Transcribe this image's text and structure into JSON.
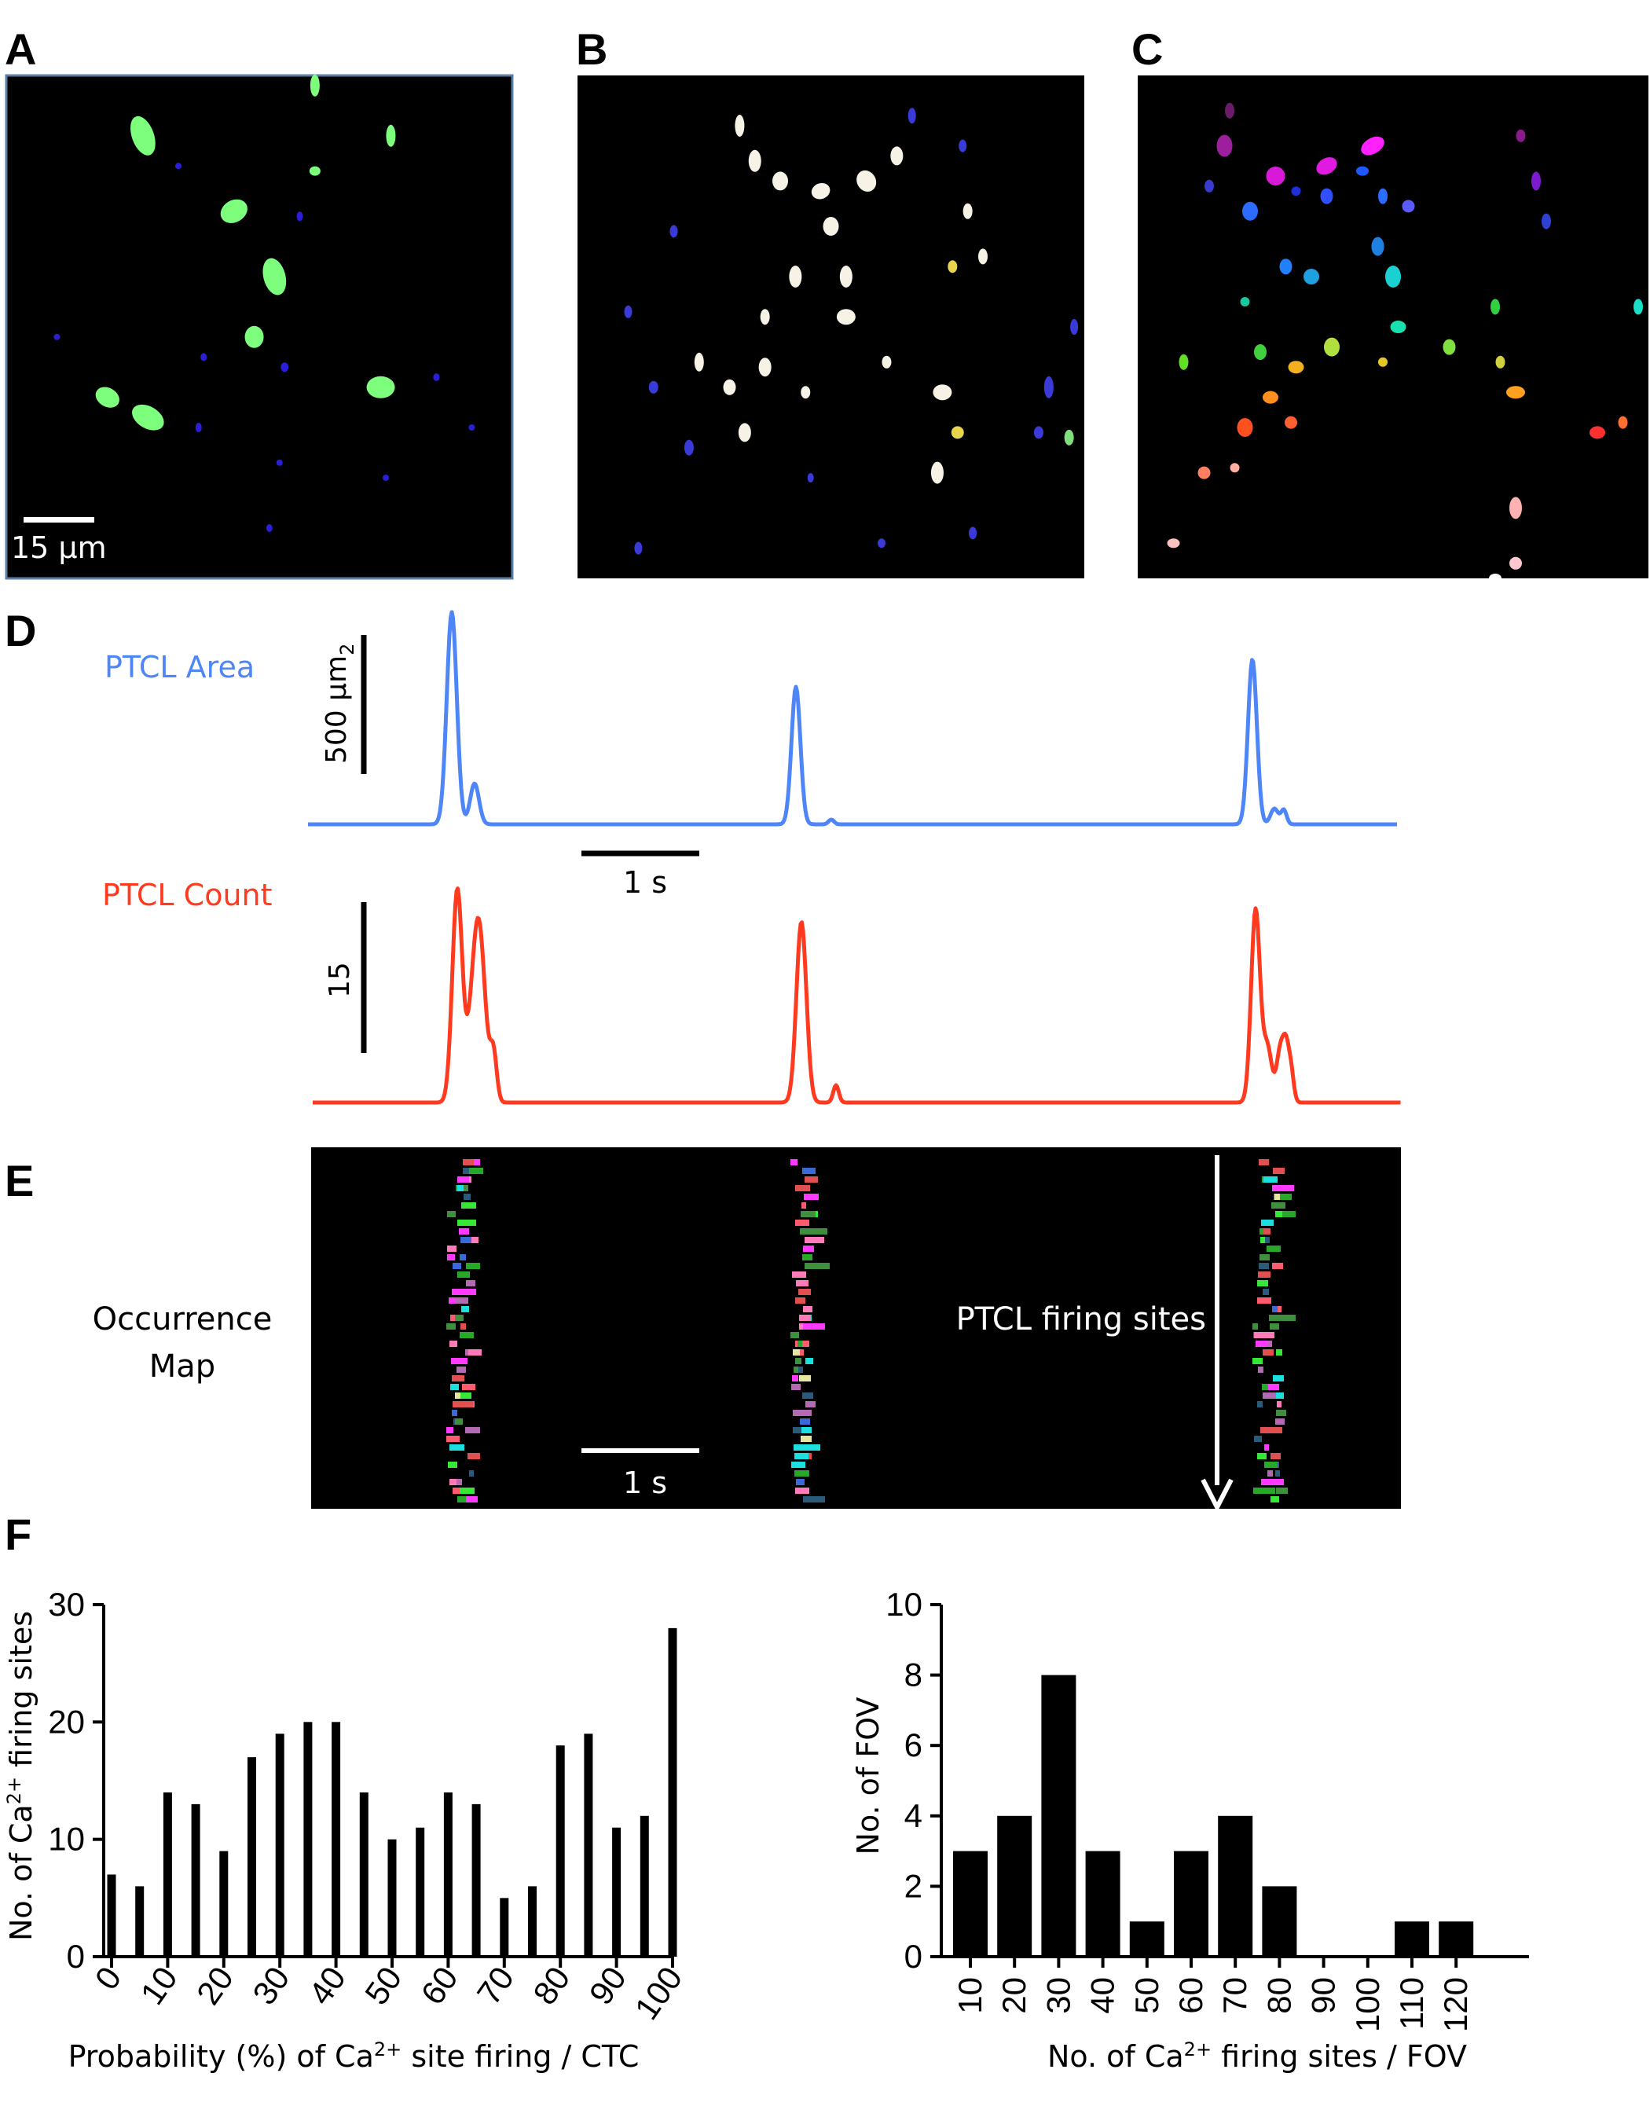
{
  "panels": {
    "A": {
      "label": "A",
      "scalebar": "15 μm"
    },
    "B": {
      "label": "B"
    },
    "C": {
      "label": "C"
    },
    "D": {
      "label": "D"
    },
    "E": {
      "label": "E"
    },
    "F": {
      "label": "F"
    }
  },
  "traces": {
    "area": {
      "name": "PTCL Area",
      "color": "#4f86f7",
      "scale": "500 μm",
      "scale_sub": "2"
    },
    "count": {
      "name": "PTCL Count",
      "color": "#ff3a1f",
      "scale": "15"
    },
    "time_scale": "1 s"
  },
  "occurrence": {
    "title_line1": "Occurrence",
    "title_line2": "Map",
    "arrow_label": "PTCL firing sites",
    "time_scale": "1 s"
  },
  "colors": {
    "blue_trace": "#4f86f7",
    "red_trace": "#ff3a1f",
    "bar": "#000000"
  },
  "chart_data": [
    {
      "type": "bar",
      "title": "",
      "categories": [
        "0",
        "5",
        "10",
        "15",
        "20",
        "25",
        "30",
        "35",
        "40",
        "45",
        "50",
        "55",
        "60",
        "65",
        "70",
        "75",
        "80",
        "85",
        "90",
        "95",
        "100"
      ],
      "tick_labels": [
        "0",
        "10",
        "20",
        "30",
        "40",
        "50",
        "60",
        "70",
        "80",
        "90",
        "100"
      ],
      "values": [
        7,
        6,
        14,
        13,
        9,
        17,
        19,
        20,
        20,
        14,
        10,
        11,
        14,
        13,
        5,
        6,
        18,
        19,
        11,
        12,
        28
      ],
      "xlabel": "Probability (%) of Ca",
      "xlabel_sup": "2+",
      "xlabel_tail": " site firing / CTC",
      "ylabel": "No. of Ca",
      "ylabel_sup": "2+",
      "ylabel_tail": " firing sites",
      "ylim": [
        0,
        30
      ],
      "yticks": [
        "0",
        "10",
        "20",
        "30"
      ]
    },
    {
      "type": "bar",
      "title": "",
      "categories": [
        "10",
        "20",
        "30",
        "40",
        "50",
        "60",
        "70",
        "80",
        "90",
        "100",
        "110",
        "120"
      ],
      "values": [
        3,
        4,
        8,
        3,
        1,
        3,
        4,
        2,
        0,
        0,
        1,
        1
      ],
      "xlabel": "No. of Ca",
      "xlabel_sup": "2+",
      "xlabel_tail": " firing sites / FOV",
      "ylabel": "No. of FOV",
      "ylim": [
        0,
        10
      ],
      "yticks": [
        "0",
        "2",
        "4",
        "6",
        "8",
        "10"
      ]
    }
  ]
}
